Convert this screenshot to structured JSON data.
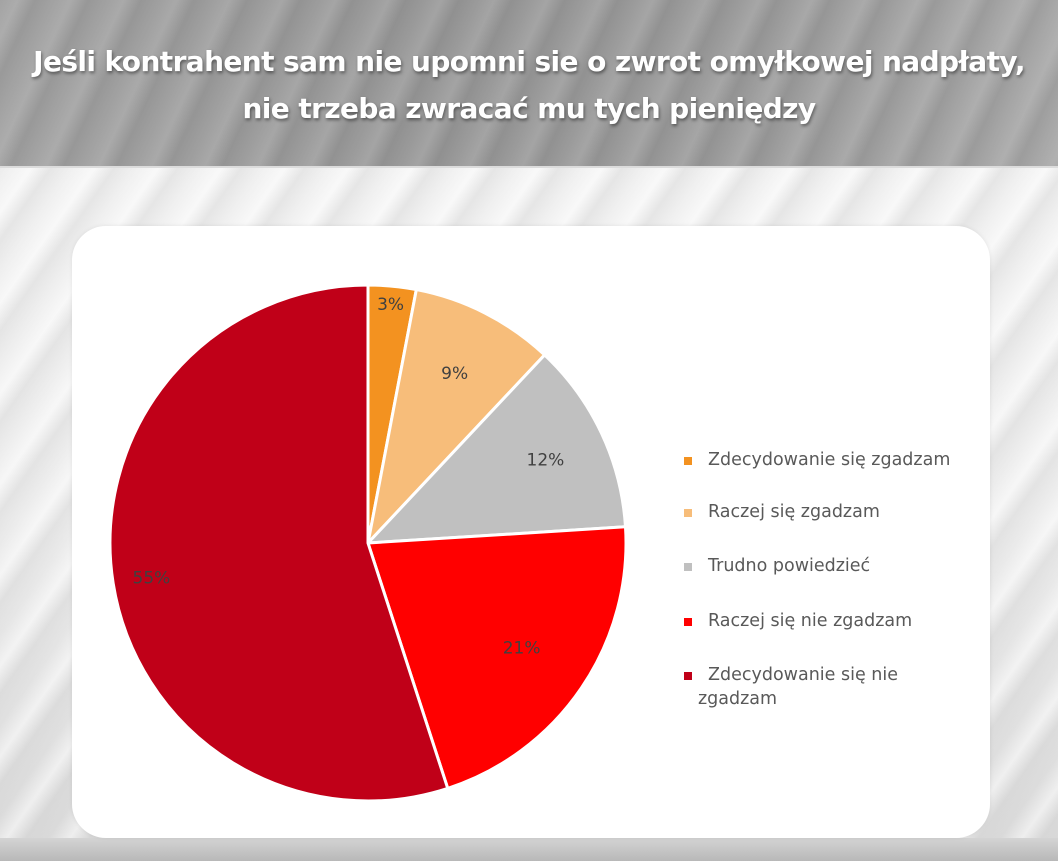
{
  "header": {
    "title": "Jeśli kontrahent sam nie upomni sie o zwrot omyłkowej nadpłaty, nie trzeba zwracać mu tych pieniędzy"
  },
  "chart_data": {
    "type": "pie",
    "title": "Jeśli kontrahent sam nie upomni sie o zwrot omyłkowej nadpłaty, nie trzeba zwracać mu tych pieniędzy",
    "categories": [
      "Zdecydowanie się zgadzam",
      "Raczej się zgadzam",
      "Trudno powiedzieć",
      "Raczej się nie zgadzam",
      "Zdecydowanie się nie zgadzam"
    ],
    "values": [
      3,
      9,
      12,
      21,
      55
    ],
    "labels": [
      "3%",
      "9%",
      "12%",
      "21%",
      "55%"
    ],
    "colors": [
      "#f39220",
      "#f7bd7a",
      "#c0c0c0",
      "#ff0000",
      "#c00018"
    ],
    "start_angle_deg": 0,
    "direction": "clockwise",
    "legend_position": "right",
    "unit": "%"
  },
  "legend": {
    "items": [
      {
        "label": "Zdecydowanie się zgadzam",
        "color": "#f39220"
      },
      {
        "label": "Raczej się zgadzam",
        "color": "#f7bd7a"
      },
      {
        "label": "Trudno powiedzieć",
        "color": "#c0c0c0"
      },
      {
        "label": "Raczej się nie zgadzam",
        "color": "#ff0000"
      },
      {
        "label": "Zdecydowanie się nie zgadzam",
        "color": "#c00018"
      }
    ]
  }
}
